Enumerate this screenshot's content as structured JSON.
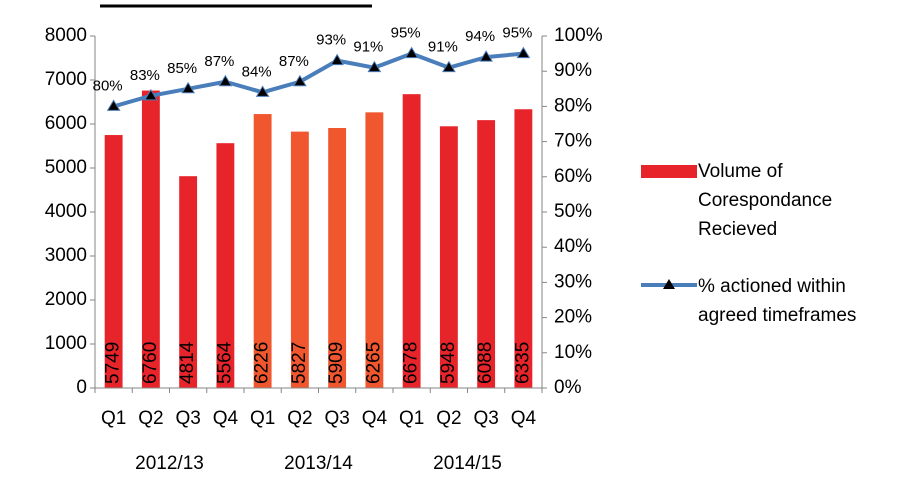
{
  "chart_data": {
    "type": "bar",
    "categories": [
      "Q1",
      "Q2",
      "Q3",
      "Q4",
      "Q1",
      "Q2",
      "Q3",
      "Q4",
      "Q1",
      "Q2",
      "Q3",
      "Q4"
    ],
    "groups": [
      {
        "label": "2012/13",
        "start": 0,
        "end": 3
      },
      {
        "label": "2013/14",
        "start": 4,
        "end": 7
      },
      {
        "label": "2014/15",
        "start": 8,
        "end": 11
      }
    ],
    "series": [
      {
        "name": "Volume of Corespondance Recieved",
        "type": "bar",
        "axis": "left",
        "values": [
          5749,
          6760,
          4814,
          5564,
          6226,
          5827,
          5909,
          6265,
          6678,
          5948,
          6088,
          6335
        ],
        "labels": [
          "5749",
          "6760",
          "4814",
          "5564",
          "6226",
          "5827",
          "5909",
          "6265",
          "6678",
          "5948",
          "6088",
          "6335"
        ],
        "colors": [
          "#e8242b",
          "#e8242b",
          "#e8242b",
          "#e8242b",
          "#f0572f",
          "#f0572f",
          "#f0572f",
          "#f0572f",
          "#e8242b",
          "#e8242b",
          "#e8242b",
          "#e8242b"
        ],
        "legend_color": "#e8242b"
      },
      {
        "name": "% actioned within agreed timeframes",
        "type": "line",
        "axis": "right",
        "values": [
          80,
          83,
          85,
          87,
          84,
          87,
          93,
          91,
          95,
          91,
          94,
          95
        ],
        "labels": [
          "80%",
          "83%",
          "85%",
          "87%",
          "84%",
          "87%",
          "93%",
          "91%",
          "95%",
          "91%",
          "94%",
          "95%"
        ],
        "color": "#4a7ebb",
        "marker_color": "#000000"
      }
    ],
    "left_axis": {
      "min": 0,
      "max": 8000,
      "ticks": [
        "0",
        "1000",
        "2000",
        "3000",
        "4000",
        "5000",
        "6000",
        "7000",
        "8000"
      ]
    },
    "right_axis": {
      "min": 0,
      "max": 100,
      "ticks": [
        "0%",
        "10%",
        "20%",
        "30%",
        "40%",
        "50%",
        "60%",
        "70%",
        "80%",
        "90%",
        "100%"
      ]
    },
    "grid": false,
    "legend_position": "right"
  }
}
